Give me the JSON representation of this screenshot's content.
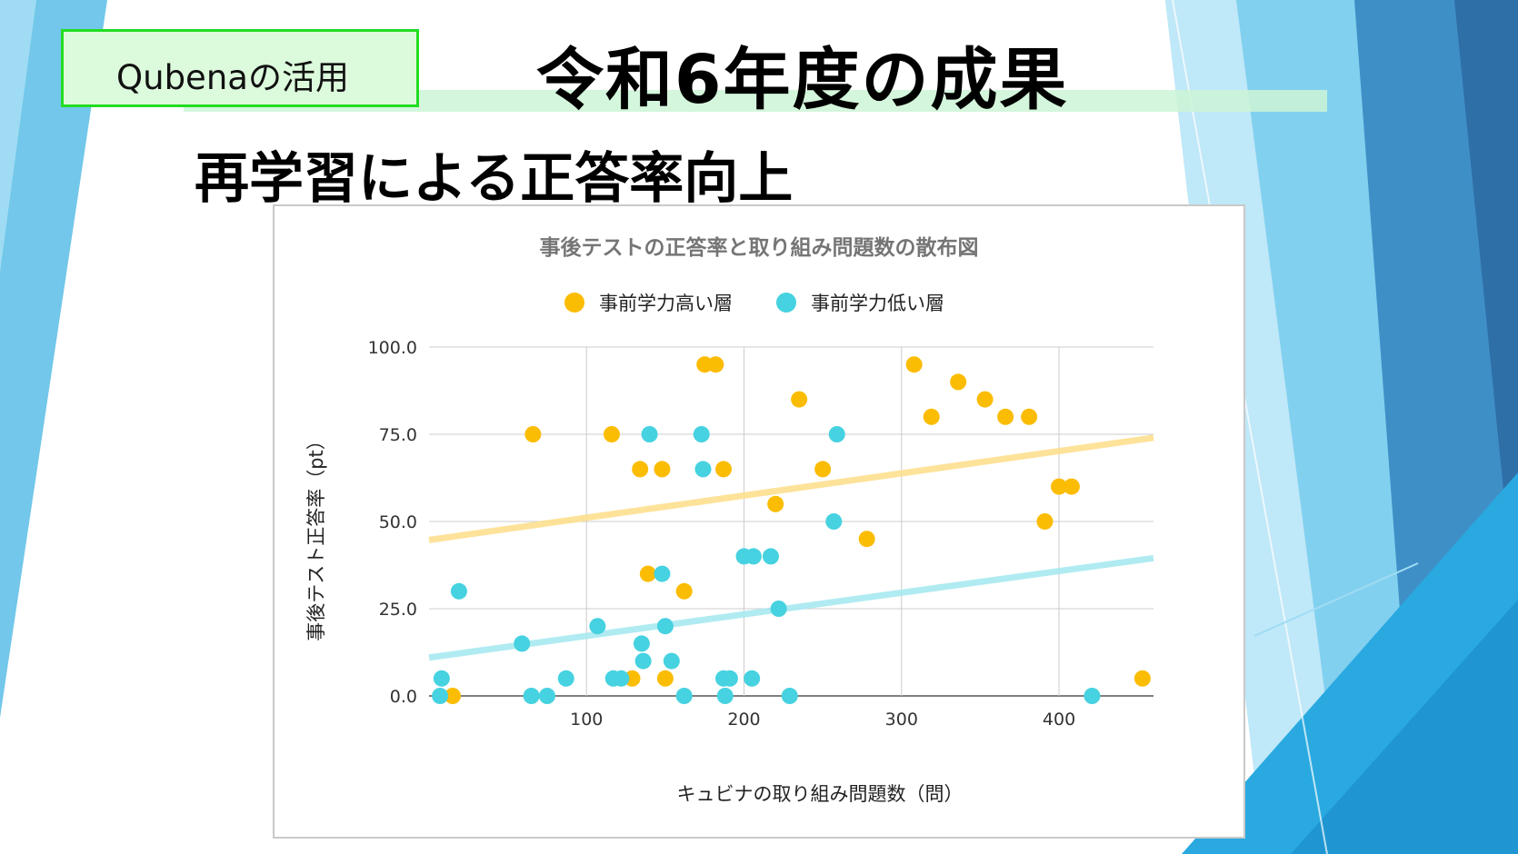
{
  "slide": {
    "tag_label": "Qubenaの活用",
    "title": "令和6年度の成果",
    "subtitle": "再学習による正答率向上"
  },
  "colors": {
    "high": "#fbbc04",
    "low": "#46d2e0",
    "high_trend": "#fddf8e",
    "low_trend": "#a8e9f1",
    "tag_border": "#22dd22",
    "grid": "#cccccc"
  },
  "chart_data": {
    "type": "scatter",
    "title": "事後テストの正答率と取り組み問題数の散布図",
    "xlabel": "キュビナの取り組み問題数（問）",
    "ylabel": "事後テスト正答率（pt）",
    "xlim": [
      0,
      460
    ],
    "ylim": [
      0,
      100
    ],
    "xticks": [
      100,
      200,
      300,
      400
    ],
    "yticks": [
      0,
      25,
      50,
      75,
      100
    ],
    "ytick_labels": [
      "0.0",
      "25.0",
      "50.0",
      "75.0",
      "100.0"
    ],
    "legend_position": "top-center",
    "grid": true,
    "series": [
      {
        "name": "事前学力高い層",
        "color_key": "high",
        "points": [
          [
            15,
            0
          ],
          [
            66,
            75
          ],
          [
            116,
            75
          ],
          [
            134,
            65
          ],
          [
            139,
            35
          ],
          [
            148,
            65
          ],
          [
            150,
            5
          ],
          [
            129,
            5
          ],
          [
            162,
            30
          ],
          [
            175,
            95
          ],
          [
            182,
            95
          ],
          [
            187,
            65
          ],
          [
            220,
            55
          ],
          [
            235,
            85
          ],
          [
            250,
            65
          ],
          [
            278,
            45
          ],
          [
            308,
            95
          ],
          [
            319,
            80
          ],
          [
            336,
            90
          ],
          [
            353,
            85
          ],
          [
            366,
            80
          ],
          [
            381,
            80
          ],
          [
            391,
            50
          ],
          [
            400,
            60
          ],
          [
            408,
            60
          ],
          [
            453,
            5
          ]
        ],
        "trend": [
          [
            0,
            44.7
          ],
          [
            460,
            74
          ]
        ]
      },
      {
        "name": "事前学力低い層",
        "color_key": "low",
        "points": [
          [
            8,
            5
          ],
          [
            7,
            0
          ],
          [
            19,
            30
          ],
          [
            59,
            15
          ],
          [
            65,
            0
          ],
          [
            75,
            0
          ],
          [
            87,
            5
          ],
          [
            107,
            20
          ],
          [
            117,
            5
          ],
          [
            122,
            5
          ],
          [
            135,
            15
          ],
          [
            136,
            10
          ],
          [
            140,
            75
          ],
          [
            148,
            35
          ],
          [
            150,
            20
          ],
          [
            154,
            10
          ],
          [
            162,
            0
          ],
          [
            173,
            75
          ],
          [
            174,
            65
          ],
          [
            187,
            5
          ],
          [
            188,
            0
          ],
          [
            191,
            5
          ],
          [
            200,
            40
          ],
          [
            205,
            5
          ],
          [
            206,
            40
          ],
          [
            217,
            40
          ],
          [
            222,
            25
          ],
          [
            229,
            0
          ],
          [
            257,
            50
          ],
          [
            259,
            75
          ],
          [
            421,
            0
          ]
        ],
        "trend": [
          [
            0,
            11
          ],
          [
            460,
            39.5
          ]
        ]
      }
    ]
  }
}
